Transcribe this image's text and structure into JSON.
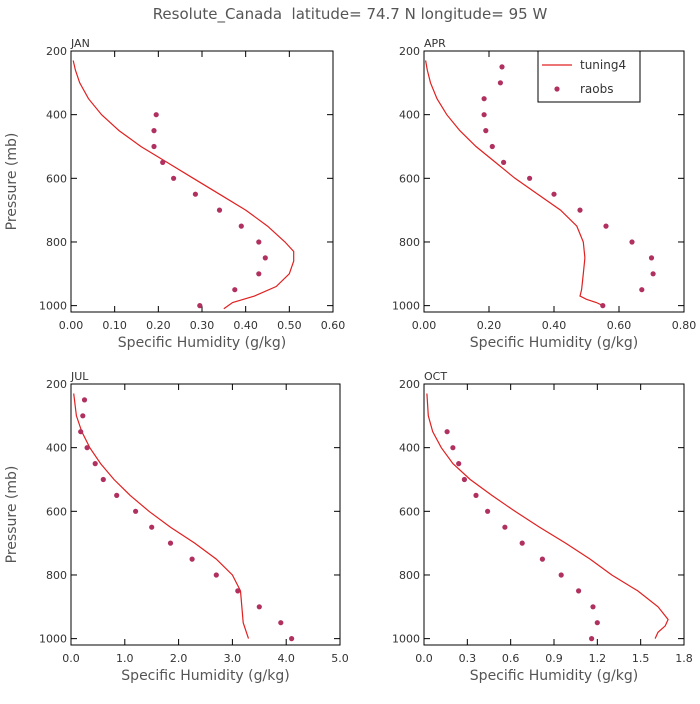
{
  "title": "Resolute_Canada  latitude= 74.7 N longitude= 95 W",
  "colors": {
    "model": "#e02020",
    "obs": "#b03060",
    "axis": "#000000"
  },
  "legend": {
    "model_label": "tuning4",
    "obs_label": "raobs"
  },
  "chart_data": [
    {
      "type": "line",
      "panel": "JAN",
      "xlabel": "Specific Humidity (g/kg)",
      "ylabel": "Pressure (mb)",
      "xlim": [
        0,
        0.6
      ],
      "ylim": [
        200,
        1020
      ],
      "xticks": [
        "0.00",
        "0.10",
        "0.20",
        "0.30",
        "0.40",
        "0.50",
        "0.60"
      ],
      "xtick_values": [
        0,
        0.1,
        0.2,
        0.3,
        0.4,
        0.5,
        0.6
      ],
      "yticks": [
        "200",
        "400",
        "600",
        "800",
        "1000"
      ],
      "ytick_values": [
        200,
        400,
        600,
        800,
        1000
      ],
      "show_ylabel": true,
      "legend": false,
      "series": [
        {
          "name": "tuning4",
          "kind": "line",
          "x": [
            0.005,
            0.01,
            0.02,
            0.04,
            0.07,
            0.11,
            0.16,
            0.22,
            0.28,
            0.34,
            0.4,
            0.45,
            0.49,
            0.51,
            0.51,
            0.5,
            0.47,
            0.42,
            0.37,
            0.35
          ],
          "y": [
            230,
            260,
            300,
            350,
            400,
            450,
            500,
            550,
            600,
            650,
            700,
            750,
            800,
            830,
            860,
            900,
            940,
            970,
            990,
            1010
          ]
        },
        {
          "name": "raobs",
          "kind": "scatter",
          "x": [
            0.195,
            0.19,
            0.19,
            0.21,
            0.235,
            0.285,
            0.34,
            0.39,
            0.43,
            0.445,
            0.43,
            0.375,
            0.295
          ],
          "y": [
            400,
            450,
            500,
            550,
            600,
            650,
            700,
            750,
            800,
            850,
            900,
            950,
            1000
          ]
        }
      ]
    },
    {
      "type": "line",
      "panel": "APR",
      "xlabel": "Specific Humidity (g/kg)",
      "ylabel": "Pressure (mb)",
      "xlim": [
        0,
        0.8
      ],
      "ylim": [
        200,
        1020
      ],
      "xticks": [
        "0.00",
        "0.20",
        "0.40",
        "0.60",
        "0.80"
      ],
      "xtick_values": [
        0,
        0.2,
        0.4,
        0.6,
        0.8
      ],
      "yticks": [
        "200",
        "400",
        "600",
        "800",
        "1000"
      ],
      "ytick_values": [
        200,
        400,
        600,
        800,
        1000
      ],
      "show_ylabel": false,
      "legend": true,
      "series": [
        {
          "name": "tuning4",
          "kind": "line",
          "x": [
            0.005,
            0.01,
            0.02,
            0.04,
            0.07,
            0.11,
            0.16,
            0.22,
            0.28,
            0.35,
            0.42,
            0.47,
            0.49,
            0.495,
            0.49,
            0.485,
            0.48,
            0.5,
            0.53,
            0.55
          ],
          "y": [
            230,
            260,
            300,
            350,
            400,
            450,
            500,
            550,
            600,
            650,
            700,
            750,
            800,
            850,
            900,
            950,
            970,
            980,
            990,
            1000
          ]
        },
        {
          "name": "raobs",
          "kind": "scatter",
          "x": [
            0.24,
            0.235,
            0.185,
            0.185,
            0.19,
            0.21,
            0.245,
            0.325,
            0.4,
            0.48,
            0.56,
            0.64,
            0.7,
            0.705,
            0.67,
            0.55
          ],
          "y": [
            250,
            300,
            350,
            400,
            450,
            500,
            550,
            600,
            650,
            700,
            750,
            800,
            850,
            900,
            950,
            1000
          ]
        }
      ]
    },
    {
      "type": "line",
      "panel": "JUL",
      "xlabel": "Specific Humidity (g/kg)",
      "ylabel": "Pressure (mb)",
      "xlim": [
        0,
        5.0
      ],
      "ylim": [
        200,
        1020
      ],
      "xticks": [
        "0.0",
        "1.0",
        "2.0",
        "3.0",
        "4.0",
        "5.0"
      ],
      "xtick_values": [
        0,
        1,
        2,
        3,
        4,
        5
      ],
      "yticks": [
        "200",
        "400",
        "600",
        "800",
        "1000"
      ],
      "ytick_values": [
        200,
        400,
        600,
        800,
        1000
      ],
      "show_ylabel": true,
      "legend": false,
      "series": [
        {
          "name": "tuning4",
          "kind": "line",
          "x": [
            0.05,
            0.1,
            0.2,
            0.35,
            0.55,
            0.8,
            1.1,
            1.45,
            1.85,
            2.3,
            2.7,
            3.0,
            3.15,
            3.2,
            3.3
          ],
          "y": [
            230,
            300,
            350,
            400,
            450,
            500,
            550,
            600,
            650,
            700,
            750,
            800,
            850,
            950,
            1000
          ]
        },
        {
          "name": "raobs",
          "kind": "scatter",
          "x": [
            0.25,
            0.22,
            0.18,
            0.3,
            0.45,
            0.6,
            0.85,
            1.2,
            1.5,
            1.85,
            2.25,
            2.7,
            3.1,
            3.5,
            3.9,
            4.1
          ],
          "y": [
            250,
            300,
            350,
            400,
            450,
            500,
            550,
            600,
            650,
            700,
            750,
            800,
            850,
            900,
            950,
            1000
          ]
        }
      ]
    },
    {
      "type": "line",
      "panel": "OCT",
      "xlabel": "Specific Humidity (g/kg)",
      "ylabel": "Pressure (mb)",
      "xlim": [
        0,
        1.8
      ],
      "ylim": [
        200,
        1020
      ],
      "xticks": [
        "0.0",
        "0.3",
        "0.6",
        "0.9",
        "1.2",
        "1.5",
        "1.8"
      ],
      "xtick_values": [
        0,
        0.3,
        0.6,
        0.9,
        1.2,
        1.5,
        1.8
      ],
      "yticks": [
        "200",
        "400",
        "600",
        "800",
        "1000"
      ],
      "ytick_values": [
        200,
        400,
        600,
        800,
        1000
      ],
      "show_ylabel": false,
      "legend": false,
      "series": [
        {
          "name": "tuning4",
          "kind": "line",
          "x": [
            0.02,
            0.03,
            0.06,
            0.12,
            0.2,
            0.32,
            0.47,
            0.63,
            0.8,
            0.98,
            1.15,
            1.3,
            1.48,
            1.62,
            1.69,
            1.67,
            1.62,
            1.6
          ],
          "y": [
            230,
            300,
            350,
            400,
            450,
            500,
            550,
            600,
            650,
            700,
            750,
            800,
            850,
            900,
            940,
            960,
            980,
            1000
          ]
        },
        {
          "name": "raobs",
          "kind": "scatter",
          "x": [
            0.16,
            0.2,
            0.24,
            0.28,
            0.36,
            0.44,
            0.56,
            0.68,
            0.82,
            0.95,
            1.07,
            1.17,
            1.2,
            1.16
          ],
          "y": [
            350,
            400,
            450,
            500,
            550,
            600,
            650,
            700,
            750,
            800,
            850,
            900,
            950,
            1000
          ]
        }
      ]
    }
  ]
}
